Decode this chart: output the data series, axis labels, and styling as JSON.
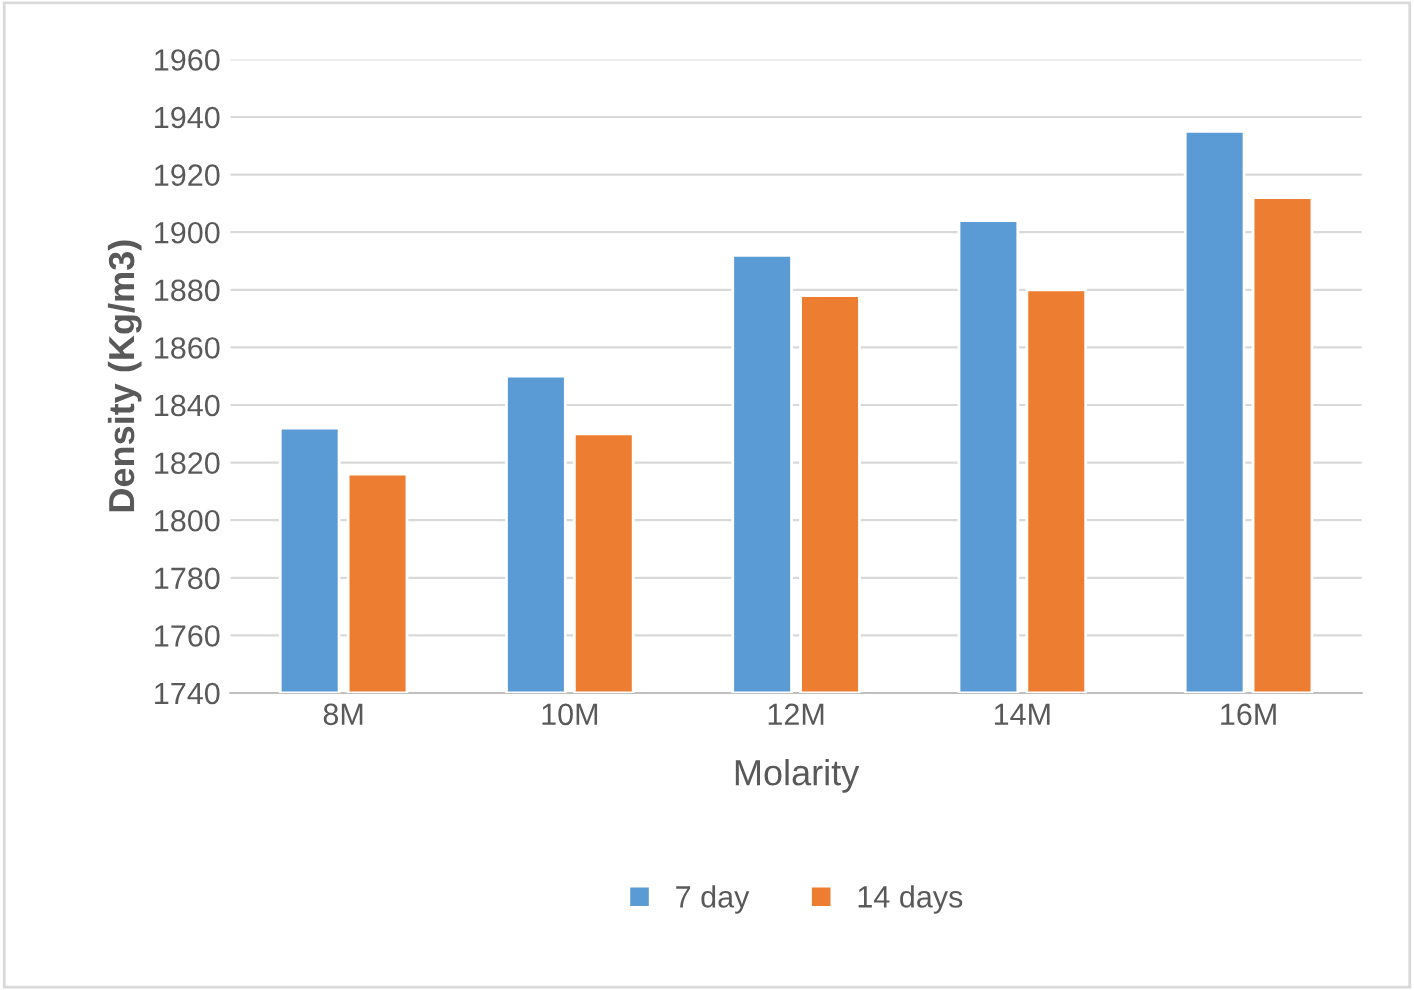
{
  "chart_data": {
    "type": "bar",
    "xlabel": "Molarity",
    "ylabel": "Density (Kg/m3)",
    "categories": [
      "8M",
      "10M",
      "12M",
      "14M",
      "16M"
    ],
    "series": [
      {
        "name": "7 day",
        "color": "#5b9bd5",
        "values": [
          1832,
          1850,
          1892,
          1904,
          1935
        ]
      },
      {
        "name": "14 days",
        "color": "#ed7d31",
        "values": [
          1816,
          1830,
          1878,
          1880,
          1912
        ]
      }
    ],
    "ylim": [
      1740,
      1960
    ],
    "yticks": [
      1740,
      1760,
      1780,
      1800,
      1820,
      1840,
      1860,
      1880,
      1900,
      1920,
      1940,
      1960
    ],
    "grid": "y",
    "legend": "bottom"
  }
}
